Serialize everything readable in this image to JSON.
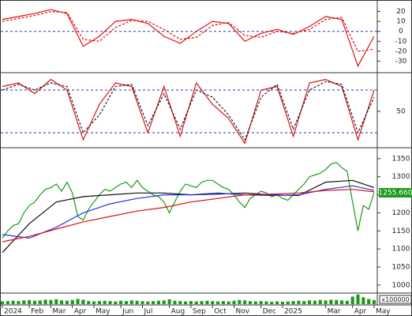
{
  "chart_data": [
    {
      "type": "line",
      "ylim": [
        -40,
        30
      ],
      "yticks": [
        20,
        10,
        0,
        -10,
        -20,
        -30
      ],
      "ref_lines": [
        0
      ],
      "ref_color": "#2233cc",
      "series": [
        {
          "color": "#e01010",
          "style": "solid",
          "x": [
            0,
            3,
            6,
            9,
            12,
            15,
            18,
            21,
            24,
            27,
            30,
            33,
            36,
            39,
            42,
            45,
            48,
            51,
            54,
            57,
            60,
            63,
            66,
            69
          ],
          "values": [
            12,
            15,
            18,
            22,
            18,
            -15,
            -5,
            10,
            12,
            8,
            -5,
            -12,
            0,
            10,
            8,
            -10,
            -2,
            2,
            -3,
            5,
            15,
            12,
            -35,
            -5
          ]
        },
        {
          "color": "#e01010",
          "style": "dashed",
          "x": [
            0,
            3,
            6,
            9,
            12,
            15,
            18,
            21,
            24,
            27,
            30,
            33,
            36,
            39,
            42,
            45,
            48,
            51,
            54,
            57,
            60,
            63,
            66,
            69
          ],
          "values": [
            10,
            13,
            16,
            20,
            19,
            -8,
            -10,
            4,
            11,
            10,
            2,
            -8,
            -6,
            6,
            9,
            -4,
            -6,
            0,
            -2,
            2,
            12,
            14,
            -20,
            -18
          ]
        }
      ]
    },
    {
      "type": "line",
      "ylim": [
        0,
        100
      ],
      "yticks": [
        50
      ],
      "ref_lines": [
        20,
        80
      ],
      "ref_color": "#2233cc",
      "series": [
        {
          "color": "#e01010",
          "style": "solid",
          "x": [
            0,
            3,
            6,
            9,
            12,
            15,
            18,
            21,
            24,
            27,
            30,
            33,
            36,
            39,
            42,
            45,
            48,
            51,
            54,
            57,
            60,
            63,
            66,
            69
          ],
          "values": [
            85,
            90,
            75,
            95,
            80,
            10,
            60,
            90,
            85,
            20,
            85,
            15,
            90,
            60,
            40,
            5,
            80,
            85,
            15,
            90,
            95,
            85,
            10,
            80
          ]
        },
        {
          "color": "#222222",
          "style": "dashed",
          "x": [
            0,
            3,
            6,
            9,
            12,
            15,
            18,
            21,
            24,
            27,
            30,
            33,
            36,
            39,
            42,
            45,
            48,
            51,
            54,
            57,
            60,
            63,
            66,
            69
          ],
          "values": [
            80,
            88,
            80,
            90,
            85,
            20,
            45,
            85,
            88,
            30,
            75,
            25,
            80,
            70,
            45,
            10,
            70,
            88,
            25,
            80,
            92,
            88,
            20,
            70
          ]
        }
      ]
    },
    {
      "type": "line",
      "ylim": [
        980,
        1376
      ],
      "yticks": [
        1000,
        1050,
        1100,
        1150,
        1200,
        1250,
        1300,
        1350
      ],
      "series": [
        {
          "color": "#1a9a1a",
          "style": "solid",
          "values": [
            1130,
            1150,
            1165,
            1170,
            1200,
            1220,
            1230,
            1250,
            1265,
            1270,
            1280,
            1260,
            1285,
            1255,
            1190,
            1180,
            1210,
            1230,
            1250,
            1265,
            1260,
            1270,
            1280,
            1285,
            1270,
            1290,
            1270,
            1260,
            1250,
            1245,
            1230,
            1200,
            1230,
            1260,
            1280,
            1275,
            1270,
            1285,
            1290,
            1290,
            1280,
            1270,
            1265,
            1250,
            1230,
            1215,
            1240,
            1250,
            1260,
            1255,
            1245,
            1250,
            1240,
            1235,
            1250,
            1265,
            1280,
            1300,
            1305,
            1310,
            1320,
            1335,
            1340,
            1325,
            1315,
            1230,
            1150,
            1220,
            1210,
            1255.66
          ],
          "value_labels": [
            null,
            null,
            null,
            null,
            null,
            null,
            null,
            null,
            null,
            null,
            null,
            null,
            null,
            null,
            null,
            null,
            null,
            null,
            null,
            null,
            null,
            null,
            null,
            null,
            null,
            null,
            null,
            null,
            null,
            null,
            null,
            null,
            null,
            null,
            null,
            null,
            null,
            null,
            null,
            null,
            null,
            null,
            null,
            null,
            null,
            null,
            null,
            null,
            null,
            null,
            null,
            null,
            null,
            null,
            null,
            null,
            null,
            null,
            null,
            null,
            null,
            null,
            null,
            null,
            null,
            null,
            null,
            null,
            null,
            "1255.660"
          ]
        },
        {
          "color": "#111111",
          "style": "solid",
          "x": [
            0,
            5,
            10,
            15,
            20,
            25,
            30,
            35,
            40,
            45,
            50,
            55,
            60,
            65,
            69
          ],
          "values": [
            1090,
            1170,
            1230,
            1245,
            1250,
            1255,
            1255,
            1250,
            1252,
            1255,
            1250,
            1248,
            1285,
            1290,
            1270
          ]
        },
        {
          "color": "#2233dd",
          "style": "solid",
          "x": [
            0,
            5,
            10,
            15,
            20,
            25,
            30,
            35,
            40,
            45,
            50,
            55,
            60,
            65,
            69
          ],
          "values": [
            1140,
            1130,
            1160,
            1200,
            1225,
            1240,
            1250,
            1250,
            1255,
            1250,
            1248,
            1250,
            1265,
            1275,
            1262
          ]
        },
        {
          "color": "#dd1111",
          "style": "solid",
          "x": [
            0,
            5,
            10,
            15,
            20,
            25,
            30,
            35,
            40,
            45,
            50,
            55,
            60,
            65,
            69
          ],
          "values": [
            1120,
            1135,
            1155,
            1175,
            1190,
            1205,
            1215,
            1230,
            1240,
            1250,
            1252,
            1255,
            1262,
            1265,
            1258
          ]
        }
      ]
    },
    {
      "type": "bar",
      "ylim": [
        0,
        30
      ],
      "unit_label": "x100000",
      "color": "#1a9a1a",
      "categories": [
        "2024",
        null,
        null,
        null,
        null,
        "Feb",
        null,
        null,
        null,
        "Mar",
        null,
        null,
        null,
        "Apr",
        null,
        null,
        null,
        "May",
        null,
        null,
        null,
        null,
        "Jun",
        null,
        null,
        null,
        "Jul",
        null,
        null,
        null,
        null,
        "Aug",
        null,
        null,
        null,
        "Sep",
        null,
        null,
        null,
        "Oct",
        null,
        null,
        null,
        "Nov",
        null,
        null,
        null,
        null,
        "Dec",
        null,
        null,
        null,
        "2025",
        null,
        null,
        null,
        null,
        null,
        null,
        null,
        "Mar",
        null,
        null,
        null,
        null,
        "Apr",
        null,
        null,
        null,
        "May"
      ],
      "values": [
        8,
        9,
        10,
        9,
        11,
        12,
        10,
        11,
        13,
        12,
        14,
        11,
        10,
        12,
        15,
        13,
        9,
        8,
        9,
        10,
        9,
        8,
        10,
        9,
        11,
        10,
        9,
        8,
        9,
        10,
        11,
        14,
        10,
        9,
        8,
        9,
        8,
        9,
        10,
        9,
        8,
        9,
        8,
        10,
        12,
        11,
        9,
        8,
        9,
        8,
        7,
        8,
        7,
        8,
        9,
        10,
        9,
        11,
        10,
        12,
        11,
        13,
        12,
        11,
        10,
        22,
        28,
        20,
        15,
        12
      ]
    }
  ]
}
